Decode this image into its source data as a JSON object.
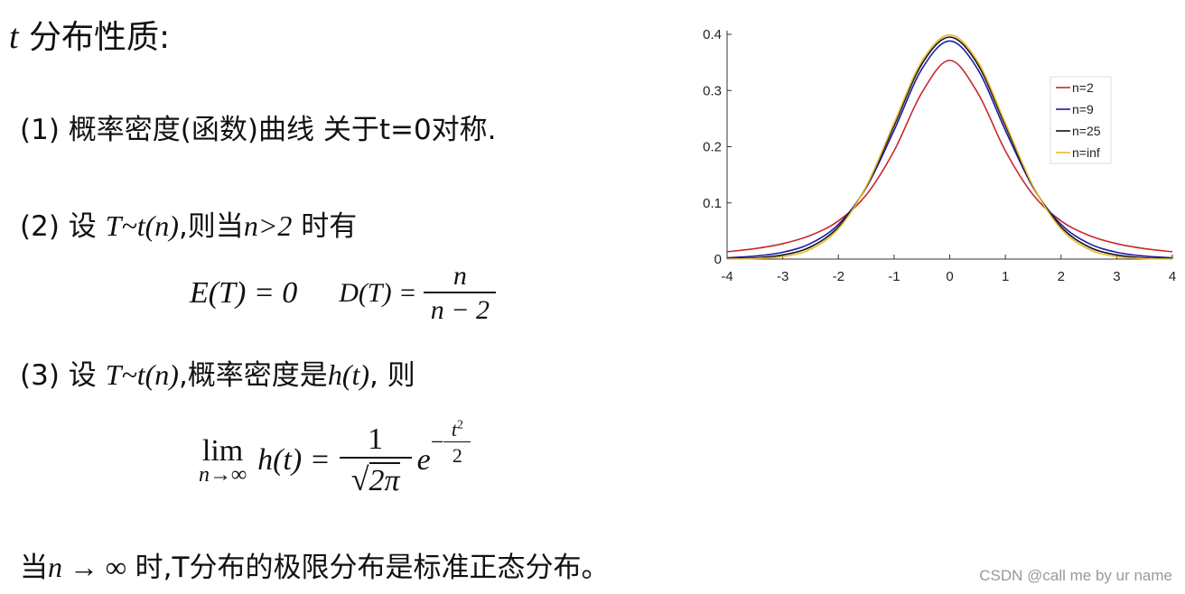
{
  "title": {
    "var": "t",
    "text": "分布性质:"
  },
  "item1": {
    "label": "(1)",
    "text": "概率密度(函数)曲线 关于t=0对称."
  },
  "item2": {
    "label": "(2)",
    "pre": "设",
    "expr": "T~t(n)",
    "mid": ",则当",
    "cond": "n>2",
    "post": "时有",
    "formula_e": "E(T) = 0",
    "formula_d": "D(T) =",
    "numerator": "n",
    "denominator": "n − 2"
  },
  "item3": {
    "label": "(3)",
    "pre": "设",
    "expr": "T~t(n)",
    "mid": ",概率密度是",
    "func": "h(t)",
    "post": ", 则",
    "lim": "lim",
    "lim_sub": "n→∞",
    "lhs": "h(t) =",
    "numerator": "1",
    "sqrt_arg": "2π",
    "base": "e",
    "minus": "−",
    "exp_num": "t",
    "exp_pow": "2",
    "exp_den": "2"
  },
  "conclusion": {
    "pre": "当",
    "expr": "n → ∞",
    "text": "时,T分布的极限分布是标准正态分布。"
  },
  "watermark": "CSDN @call me by ur name",
  "chart_data": {
    "type": "line",
    "x": [
      -4,
      -3.5,
      -3,
      -2.5,
      -2,
      -1.5,
      -1,
      -0.5,
      0,
      0.5,
      1,
      1.5,
      2,
      2.5,
      3,
      3.5,
      4
    ],
    "series": [
      {
        "name": "n=2",
        "color": "#c8282a",
        "values": [
          0.0131,
          0.0186,
          0.0274,
          0.0422,
          0.068,
          0.1141,
          0.1925,
          0.2963,
          0.3536,
          0.2963,
          0.1925,
          0.1141,
          0.068,
          0.0422,
          0.0274,
          0.0186,
          0.0131
        ]
      },
      {
        "name": "n=9",
        "color": "#1c1ca8",
        "values": [
          0.0023,
          0.0053,
          0.0121,
          0.0278,
          0.0617,
          0.1271,
          0.2291,
          0.3383,
          0.388,
          0.3383,
          0.2291,
          0.1271,
          0.0617,
          0.0278,
          0.0121,
          0.0053,
          0.0023
        ]
      },
      {
        "name": "n=25",
        "color": "#111111",
        "values": [
          0.0006,
          0.0022,
          0.0073,
          0.0217,
          0.0574,
          0.1289,
          0.2372,
          0.3471,
          0.395,
          0.3471,
          0.2372,
          0.1289,
          0.0574,
          0.0217,
          0.0073,
          0.0022,
          0.0006
        ]
      },
      {
        "name": "n=inf",
        "color": "#e8b830",
        "values": [
          0.0001,
          0.0009,
          0.0044,
          0.0175,
          0.054,
          0.1295,
          0.242,
          0.3521,
          0.3989,
          0.3521,
          0.242,
          0.1295,
          0.054,
          0.0175,
          0.0044,
          0.0009,
          0.0001
        ]
      }
    ],
    "xlim": [
      -4,
      4
    ],
    "ylim": [
      0,
      0.4
    ],
    "xticks": [
      -4,
      -3,
      -2,
      -1,
      0,
      1,
      2,
      3,
      4
    ],
    "yticks": [
      0,
      0.1,
      0.2,
      0.3,
      0.4
    ],
    "legend": "upper-right"
  }
}
